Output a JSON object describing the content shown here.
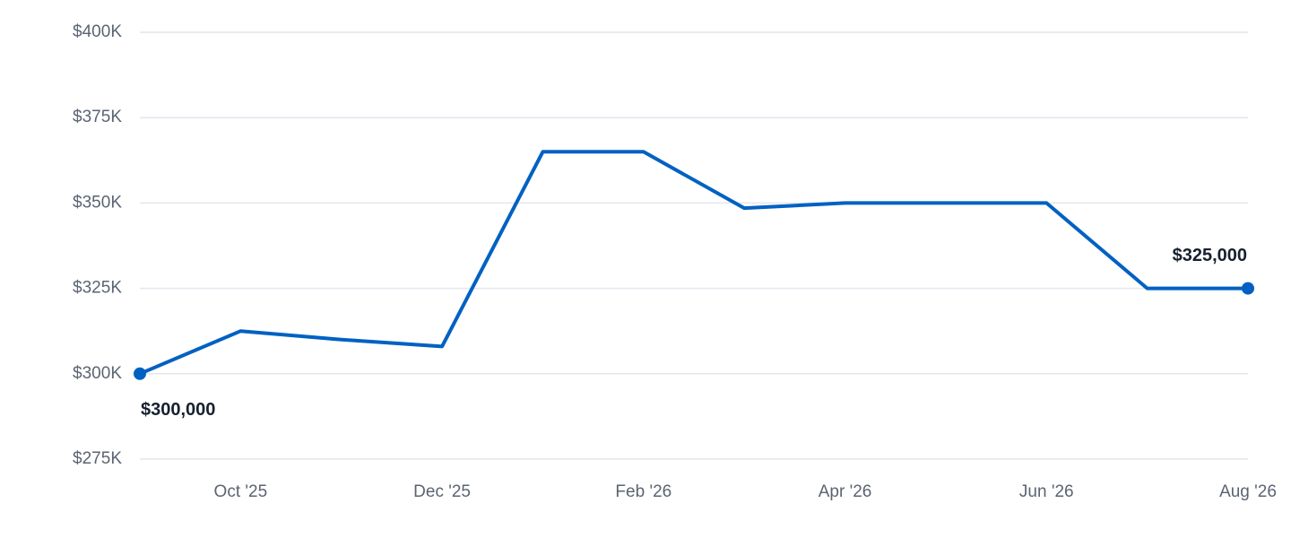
{
  "chart_data": {
    "type": "line",
    "categories": [
      null,
      "Oct '25",
      null,
      "Dec '25",
      null,
      "Feb '26",
      null,
      "Apr '26",
      null,
      "Jun '26",
      null,
      "Aug '26"
    ],
    "values": [
      300000,
      312500,
      310000,
      308000,
      365000,
      365000,
      348500,
      350000,
      350000,
      350000,
      325000,
      325000
    ],
    "value_labels": [
      "$300,000",
      null,
      null,
      null,
      null,
      null,
      null,
      null,
      null,
      null,
      null,
      "$325,000"
    ],
    "color": "#0061c2",
    "ylim": [
      275000,
      400000
    ],
    "yticks": [
      {
        "value": 275000,
        "label": "$275K"
      },
      {
        "value": 300000,
        "label": "$300K"
      },
      {
        "value": 325000,
        "label": "$325K"
      },
      {
        "value": 350000,
        "label": "$350K"
      },
      {
        "value": 375000,
        "label": "$375K"
      },
      {
        "value": 400000,
        "label": "$400K"
      }
    ],
    "grid": true
  }
}
